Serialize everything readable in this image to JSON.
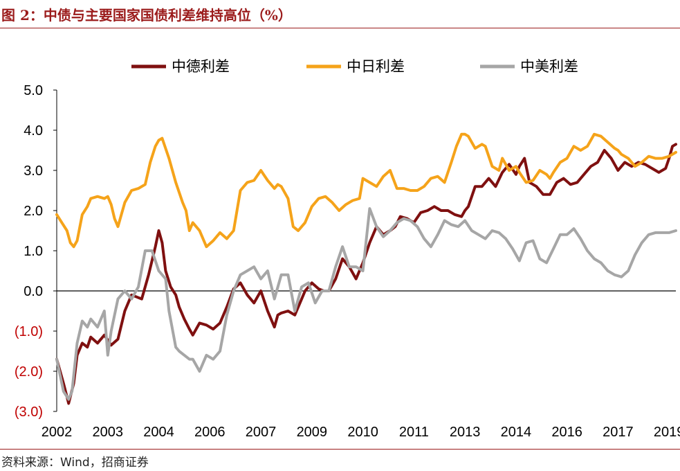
{
  "header": {
    "title": "图 2：中债与主要国家国债利差维持高位（%）"
  },
  "footer": {
    "source": "资料来源：Wind，招商证券"
  },
  "chart_data": {
    "type": "line",
    "title": "",
    "xlabel": "",
    "ylabel": "",
    "ylim": [
      -3.0,
      5.0
    ],
    "yticks": [
      {
        "value": 5,
        "label": "5.0"
      },
      {
        "value": 4,
        "label": "4.0"
      },
      {
        "value": 3,
        "label": "3.0"
      },
      {
        "value": 2,
        "label": "2.0"
      },
      {
        "value": 1,
        "label": "1.0"
      },
      {
        "value": 0,
        "label": "0.0"
      },
      {
        "value": -1,
        "label": "(1.0)"
      },
      {
        "value": -2,
        "label": "(2.0)"
      },
      {
        "value": -3,
        "label": "(3.0)"
      }
    ],
    "negative_label_color": "#c00000",
    "xlim": [
      2002.0,
      2020.2
    ],
    "xticks": [
      {
        "value": 2002.0,
        "label": "2002"
      },
      {
        "value": 2003.5,
        "label": "2003"
      },
      {
        "value": 2005.0,
        "label": "2004"
      },
      {
        "value": 2006.5,
        "label": "2006"
      },
      {
        "value": 2008.0,
        "label": "2007"
      },
      {
        "value": 2009.5,
        "label": "2009"
      },
      {
        "value": 2011.0,
        "label": "2010"
      },
      {
        "value": 2012.5,
        "label": "2011"
      },
      {
        "value": 2014.0,
        "label": "2013"
      },
      {
        "value": 2015.5,
        "label": "2014"
      },
      {
        "value": 2017.0,
        "label": "2016"
      },
      {
        "value": 2018.5,
        "label": "2017"
      },
      {
        "value": 2020.0,
        "label": "2019"
      }
    ],
    "legend_position": "top",
    "series": [
      {
        "name": "中德利差",
        "color": "#7f1010",
        "x": [
          2002.0,
          2002.2,
          2002.35,
          2002.5,
          2002.6,
          2002.75,
          2002.9,
          2003.0,
          2003.2,
          2003.4,
          2003.6,
          2003.8,
          2004.0,
          2004.2,
          2004.5,
          2004.7,
          2004.9,
          2005.0,
          2005.1,
          2005.2,
          2005.35,
          2005.5,
          2005.6,
          2005.75,
          2005.9,
          2006.0,
          2006.2,
          2006.4,
          2006.6,
          2006.8,
          2007.0,
          2007.2,
          2007.4,
          2007.6,
          2007.8,
          2008.0,
          2008.2,
          2008.4,
          2008.5,
          2008.6,
          2008.8,
          2009.0,
          2009.2,
          2009.3,
          2009.5,
          2009.7,
          2009.85,
          2010.0,
          2010.2,
          2010.4,
          2010.6,
          2010.8,
          2011.0,
          2011.2,
          2011.4,
          2011.6,
          2011.8,
          2011.95,
          2012.1,
          2012.3,
          2012.5,
          2012.7,
          2012.9,
          2013.1,
          2013.3,
          2013.5,
          2013.7,
          2013.9,
          2014.0,
          2014.1,
          2014.3,
          2014.5,
          2014.7,
          2014.9,
          2015.1,
          2015.3,
          2015.5,
          2015.6,
          2015.75,
          2015.9,
          2016.0,
          2016.1,
          2016.3,
          2016.5,
          2016.7,
          2016.9,
          2017.1,
          2017.3,
          2017.5,
          2017.7,
          2017.9,
          2018.1,
          2018.3,
          2018.5,
          2018.7,
          2018.9,
          2019.1,
          2019.3,
          2019.5,
          2019.7,
          2019.9,
          2020.0,
          2020.1,
          2020.2
        ],
        "y": [
          -1.7,
          -2.3,
          -2.8,
          -2.3,
          -1.6,
          -1.3,
          -1.4,
          -1.15,
          -1.3,
          -1.1,
          -1.35,
          -1.2,
          -0.5,
          -0.1,
          -0.2,
          0.4,
          1.1,
          1.5,
          1.2,
          0.5,
          0.1,
          -0.1,
          -0.4,
          -0.7,
          -0.95,
          -1.1,
          -0.8,
          -0.85,
          -0.95,
          -0.8,
          -0.4,
          0.05,
          0.2,
          -0.1,
          -0.3,
          0.0,
          -0.5,
          -0.9,
          -0.6,
          -0.55,
          -0.5,
          -0.6,
          -0.2,
          0.0,
          0.2,
          0.05,
          0.0,
          0.0,
          0.3,
          0.8,
          0.6,
          0.3,
          0.7,
          1.2,
          1.6,
          1.4,
          1.5,
          1.6,
          1.85,
          1.8,
          1.7,
          1.95,
          2.0,
          2.1,
          2.0,
          2.0,
          1.9,
          1.85,
          2.0,
          2.1,
          2.6,
          2.6,
          2.8,
          2.6,
          2.95,
          3.15,
          2.9,
          3.1,
          3.3,
          2.7,
          2.65,
          2.6,
          2.4,
          2.4,
          2.7,
          2.8,
          2.65,
          2.7,
          2.9,
          3.1,
          3.2,
          3.5,
          3.3,
          3.0,
          3.2,
          3.1,
          3.2,
          3.15,
          3.05,
          2.95,
          3.05,
          3.3,
          3.6,
          3.65
        ]
      },
      {
        "name": "中日利差",
        "color": "#f5a31a",
        "x": [
          2002.0,
          2002.15,
          2002.3,
          2002.4,
          2002.5,
          2002.6,
          2002.75,
          2002.9,
          2003.0,
          2003.2,
          2003.4,
          2003.5,
          2003.6,
          2003.7,
          2003.8,
          2004.0,
          2004.2,
          2004.4,
          2004.6,
          2004.75,
          2004.9,
          2005.0,
          2005.1,
          2005.3,
          2005.5,
          2005.7,
          2005.8,
          2005.9,
          2006.0,
          2006.2,
          2006.4,
          2006.6,
          2006.8,
          2007.0,
          2007.2,
          2007.4,
          2007.6,
          2007.8,
          2008.0,
          2008.2,
          2008.4,
          2008.5,
          2008.6,
          2008.8,
          2008.95,
          2009.1,
          2009.3,
          2009.5,
          2009.7,
          2009.9,
          2010.1,
          2010.3,
          2010.5,
          2010.7,
          2010.9,
          2011.0,
          2011.2,
          2011.4,
          2011.6,
          2011.8,
          2012.0,
          2012.2,
          2012.4,
          2012.6,
          2012.8,
          2013.0,
          2013.2,
          2013.4,
          2013.6,
          2013.75,
          2013.9,
          2014.0,
          2014.1,
          2014.3,
          2014.5,
          2014.6,
          2014.8,
          2015.0,
          2015.1,
          2015.3,
          2015.5,
          2015.6,
          2015.8,
          2016.0,
          2016.2,
          2016.4,
          2016.5,
          2016.6,
          2016.8,
          2017.0,
          2017.2,
          2017.4,
          2017.6,
          2017.8,
          2018.0,
          2018.2,
          2018.4,
          2018.5,
          2018.6,
          2018.8,
          2019.0,
          2019.2,
          2019.4,
          2019.6,
          2019.8,
          2020.0,
          2020.2
        ],
        "y": [
          1.9,
          1.7,
          1.5,
          1.2,
          1.1,
          1.25,
          1.9,
          2.1,
          2.3,
          2.35,
          2.3,
          2.35,
          2.15,
          1.8,
          1.6,
          2.2,
          2.5,
          2.55,
          2.65,
          3.2,
          3.6,
          3.75,
          3.8,
          3.3,
          2.7,
          2.2,
          2.0,
          1.5,
          1.7,
          1.5,
          1.1,
          1.25,
          1.45,
          1.3,
          1.5,
          2.5,
          2.7,
          2.75,
          3.0,
          2.75,
          2.55,
          2.65,
          2.6,
          2.3,
          1.6,
          1.5,
          1.7,
          2.1,
          2.3,
          2.35,
          2.2,
          2.0,
          2.15,
          2.25,
          2.3,
          2.8,
          2.7,
          2.6,
          2.85,
          3.0,
          2.55,
          2.55,
          2.5,
          2.5,
          2.6,
          2.8,
          2.85,
          2.7,
          3.2,
          3.6,
          3.9,
          3.9,
          3.85,
          3.55,
          3.65,
          3.6,
          3.1,
          3.0,
          3.3,
          3.0,
          3.1,
          2.95,
          2.7,
          2.75,
          3.0,
          2.9,
          2.8,
          2.95,
          3.2,
          3.3,
          3.6,
          3.5,
          3.6,
          3.9,
          3.85,
          3.7,
          3.55,
          3.5,
          3.4,
          3.3,
          3.1,
          3.2,
          3.35,
          3.3,
          3.3,
          3.35,
          3.45
        ]
      },
      {
        "name": "中美利差",
        "color": "#a6a6a6",
        "x": [
          2002.0,
          2002.2,
          2002.35,
          2002.45,
          2002.6,
          2002.75,
          2002.9,
          2003.0,
          2003.2,
          2003.4,
          2003.5,
          2003.6,
          2003.8,
          2004.0,
          2004.2,
          2004.4,
          2004.6,
          2004.8,
          2005.0,
          2005.2,
          2005.3,
          2005.5,
          2005.6,
          2005.75,
          2005.9,
          2006.0,
          2006.2,
          2006.4,
          2006.6,
          2006.8,
          2007.0,
          2007.2,
          2007.4,
          2007.6,
          2007.8,
          2008.0,
          2008.2,
          2008.4,
          2008.6,
          2008.8,
          2009.0,
          2009.2,
          2009.4,
          2009.6,
          2009.8,
          2010.0,
          2010.2,
          2010.4,
          2010.6,
          2010.8,
          2011.0,
          2011.2,
          2011.4,
          2011.6,
          2011.8,
          2012.0,
          2012.2,
          2012.4,
          2012.6,
          2012.8,
          2013.0,
          2013.2,
          2013.4,
          2013.6,
          2013.8,
          2014.0,
          2014.2,
          2014.4,
          2014.6,
          2014.8,
          2015.0,
          2015.2,
          2015.4,
          2015.6,
          2015.8,
          2016.0,
          2016.2,
          2016.4,
          2016.6,
          2016.8,
          2017.0,
          2017.2,
          2017.4,
          2017.6,
          2017.8,
          2018.0,
          2018.2,
          2018.4,
          2018.6,
          2018.8,
          2019.0,
          2019.2,
          2019.4,
          2019.6,
          2019.8,
          2020.0,
          2020.2
        ],
        "y": [
          -1.7,
          -2.5,
          -2.7,
          -2.5,
          -1.3,
          -0.75,
          -0.9,
          -0.7,
          -0.9,
          -0.5,
          -1.6,
          -1.0,
          -0.2,
          0.0,
          -0.2,
          0.1,
          1.0,
          1.0,
          0.5,
          0.3,
          -0.5,
          -1.4,
          -1.5,
          -1.6,
          -1.7,
          -1.7,
          -2.0,
          -1.6,
          -1.7,
          -1.5,
          -0.6,
          0.0,
          0.4,
          0.5,
          0.6,
          0.3,
          0.5,
          -0.2,
          0.4,
          0.4,
          -0.5,
          0.1,
          0.2,
          -0.3,
          0.0,
          0.0,
          0.6,
          1.1,
          0.6,
          0.6,
          0.5,
          2.05,
          1.6,
          1.35,
          1.5,
          1.7,
          1.8,
          1.75,
          1.6,
          1.3,
          1.1,
          1.4,
          1.75,
          1.65,
          1.6,
          1.75,
          1.5,
          1.4,
          1.3,
          1.5,
          1.45,
          1.3,
          1.05,
          0.75,
          1.2,
          1.25,
          0.8,
          0.7,
          1.05,
          1.4,
          1.4,
          1.55,
          1.3,
          1.0,
          0.8,
          0.7,
          0.5,
          0.4,
          0.35,
          0.5,
          0.9,
          1.2,
          1.4,
          1.45,
          1.45,
          1.45,
          1.5
        ]
      }
    ]
  }
}
